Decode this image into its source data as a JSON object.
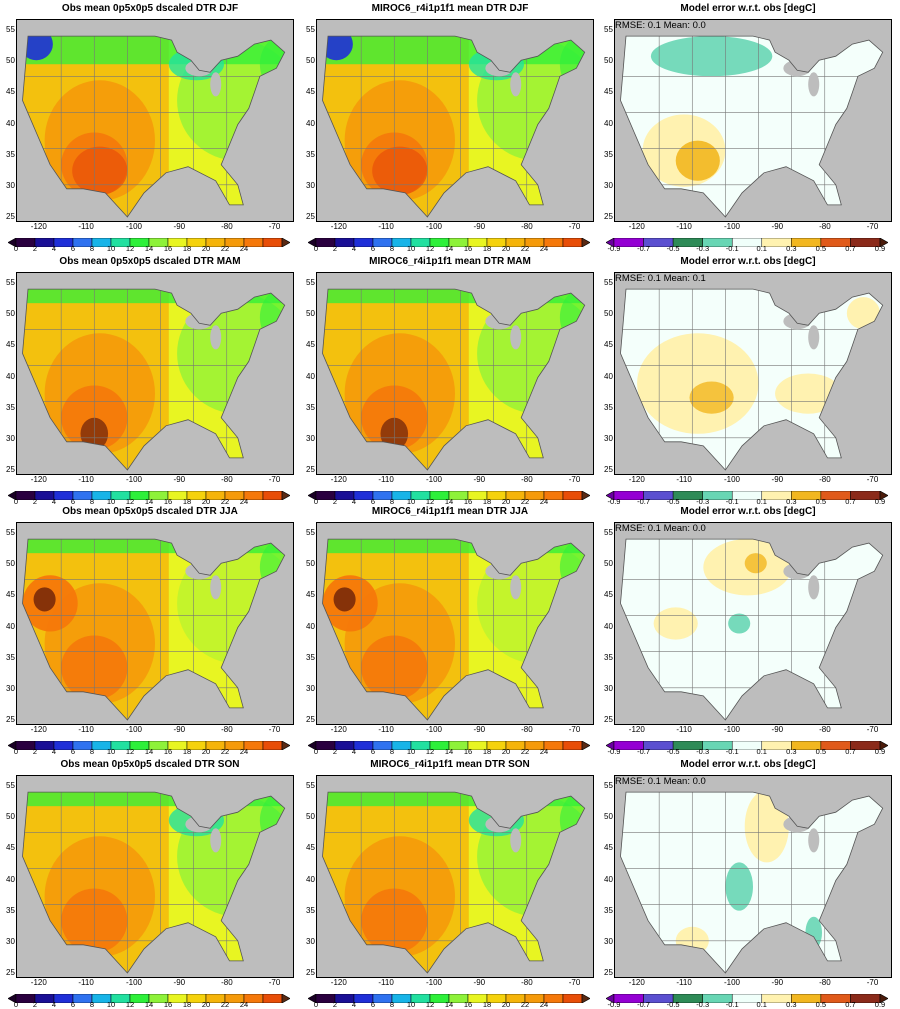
{
  "colorbars": {
    "dtr": {
      "labels": [
        "0",
        "2",
        "4",
        "6",
        "8",
        "10",
        "12",
        "14",
        "16",
        "18",
        "20",
        "22",
        "24"
      ],
      "colors": [
        "#2a003f",
        "#1a0f95",
        "#1f2fd8",
        "#2f72f0",
        "#18b4e8",
        "#22e0a0",
        "#2ef03a",
        "#8ef23a",
        "#e8f522",
        "#f5d20c",
        "#f5b40a",
        "#f59a0a",
        "#f5780a",
        "#e84e08"
      ],
      "under": "#1a0026",
      "over": "#5a2a14"
    },
    "err": {
      "labels": [
        "-0.9",
        "-0.7",
        "-0.5",
        "-0.3",
        "-0.1",
        "0.1",
        "0.3",
        "0.5",
        "0.7",
        "0.9"
      ],
      "colors": [
        "#9400d3",
        "#5b4fd0",
        "#2e8b57",
        "#68d6b4",
        "#f0fffa",
        "#fff2b0",
        "#f2b720",
        "#e05a1a",
        "#8b2a1a"
      ],
      "under": "#6a00a0",
      "over": "#4a1a0a"
    }
  },
  "axes": {
    "lat_labels": [
      "25",
      "30",
      "35",
      "40",
      "45",
      "50",
      "55"
    ],
    "lon_labels": [
      "-120",
      "-110",
      "-100",
      "-90",
      "-80",
      "-70"
    ]
  },
  "rows": [
    {
      "season": "DJF",
      "obs_title": "Obs mean 0p5x0p5 dscaled DTR DJF",
      "model_title": "MIROC6_r4i1p1f1 mean DTR DJF",
      "err_title": "Model error w.r.t. obs [degC]",
      "stats": "RMSE: 0.1   Mean: 0.0"
    },
    {
      "season": "MAM",
      "obs_title": "Obs mean 0p5x0p5 dscaled DTR MAM",
      "model_title": "MIROC6_r4i1p1f1 mean DTR MAM",
      "err_title": "Model error w.r.t. obs [degC]",
      "stats": "RMSE: 0.1   Mean: 0.1"
    },
    {
      "season": "JJA",
      "obs_title": "Obs mean 0p5x0p5 dscaled DTR JJA",
      "model_title": "MIROC6_r4i1p1f1 mean DTR JJA",
      "err_title": "Model error w.r.t. obs [degC]",
      "stats": "RMSE: 0.1   Mean: 0.0"
    },
    {
      "season": "SON",
      "obs_title": "Obs mean 0p5x0p5 dscaled DTR SON",
      "model_title": "MIROC6_r4i1p1f1 mean DTR SON",
      "err_title": "Model error w.r.t. obs [degC]",
      "stats": "RMSE: 0.1   Mean: 0.0"
    }
  ]
}
